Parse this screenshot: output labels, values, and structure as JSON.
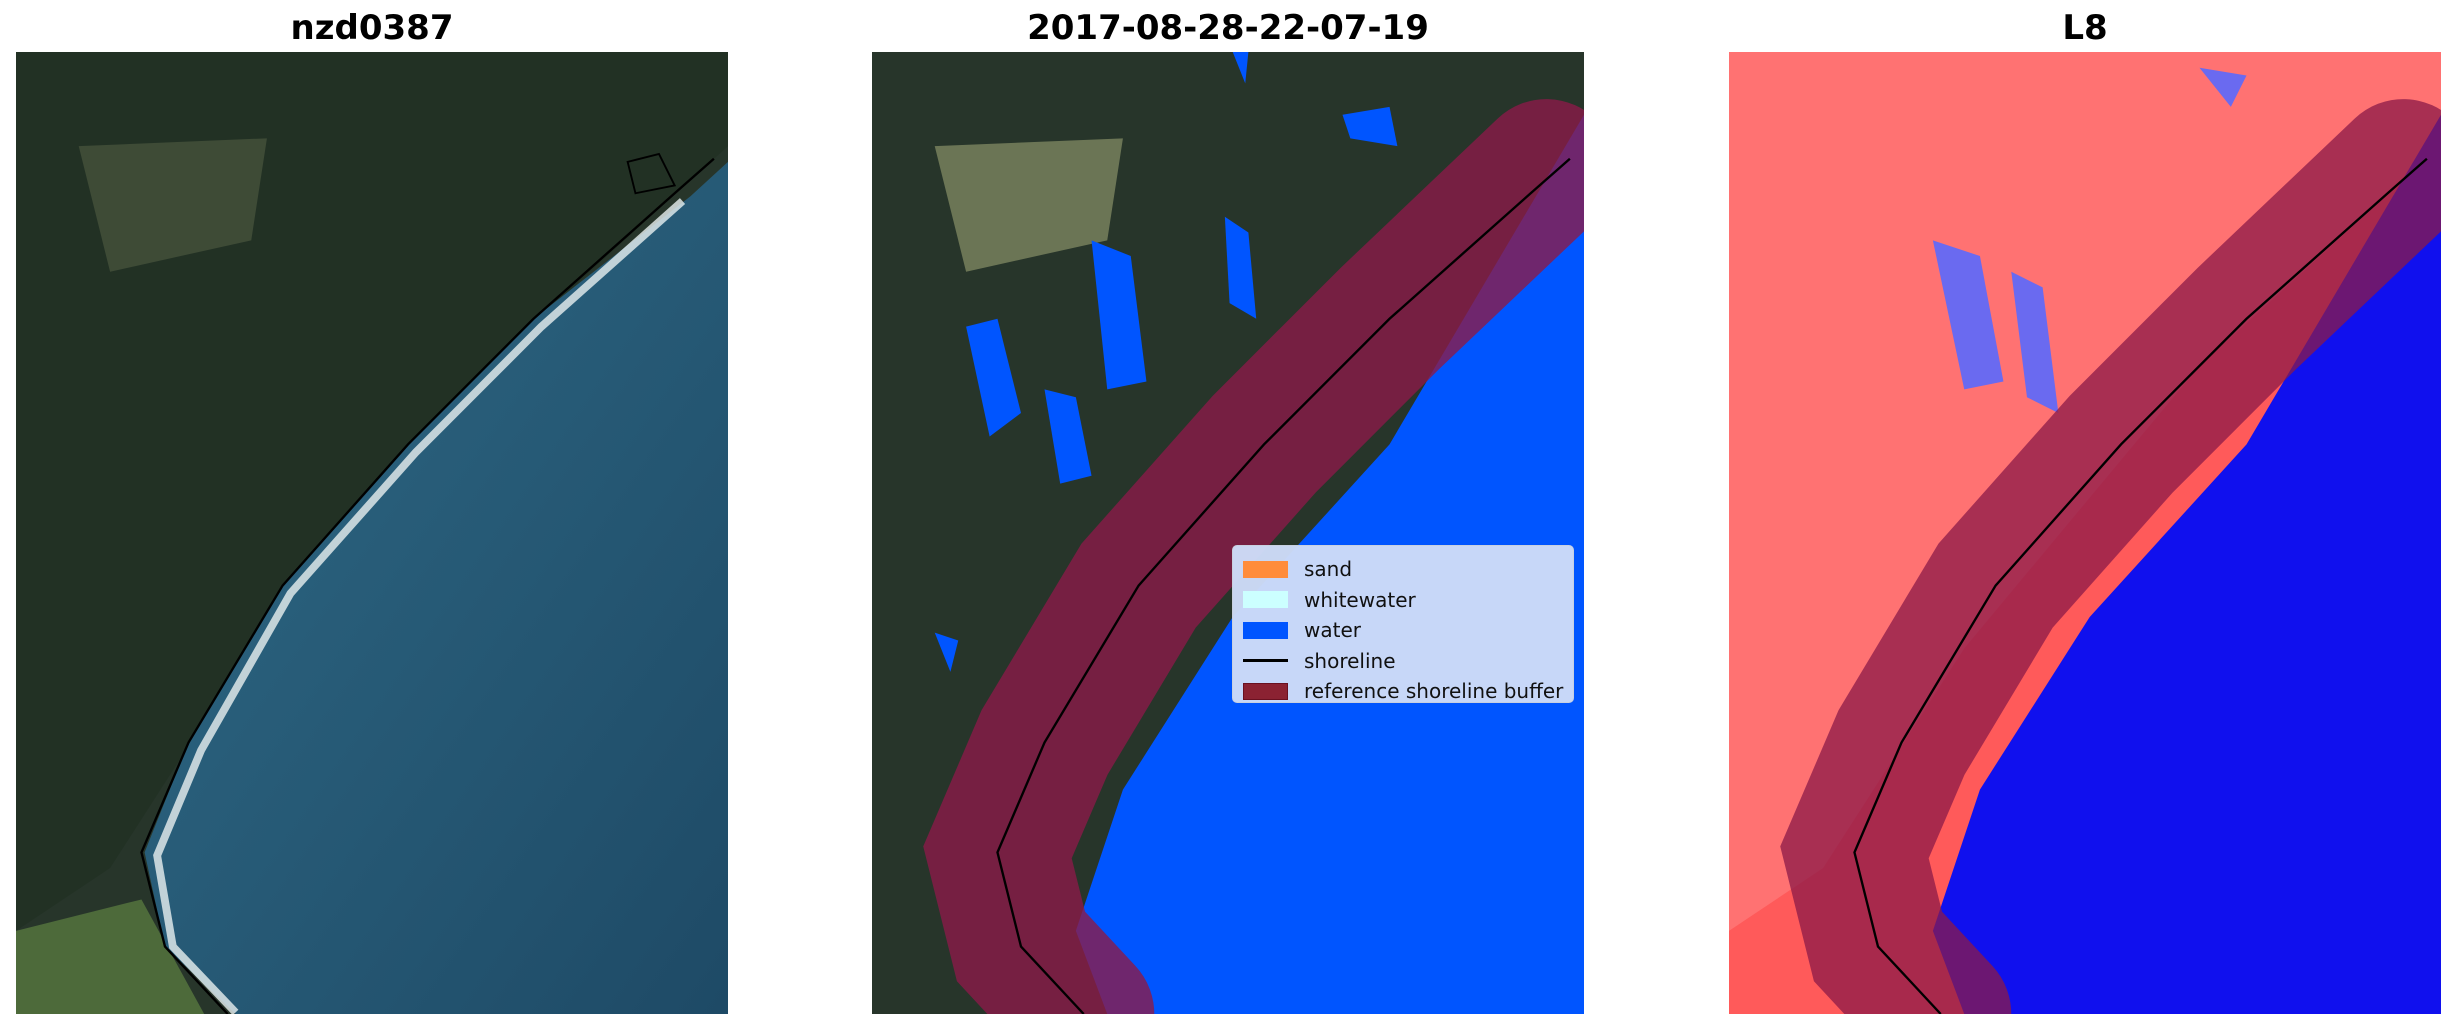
{
  "panels": [
    {
      "title": "nzd0387"
    },
    {
      "title": "2017-08-28-22-07-19"
    },
    {
      "title": "L8"
    }
  ],
  "legend": {
    "items": [
      {
        "label": "sand",
        "color": "#ff8c3a"
      },
      {
        "label": "whitewater",
        "color": "#ccffff"
      },
      {
        "label": "water",
        "color": "#0055ff"
      },
      {
        "label": "shoreline",
        "color": "#000000"
      },
      {
        "label": "reference shoreline buffer",
        "color": "#8b2232"
      }
    ]
  }
}
